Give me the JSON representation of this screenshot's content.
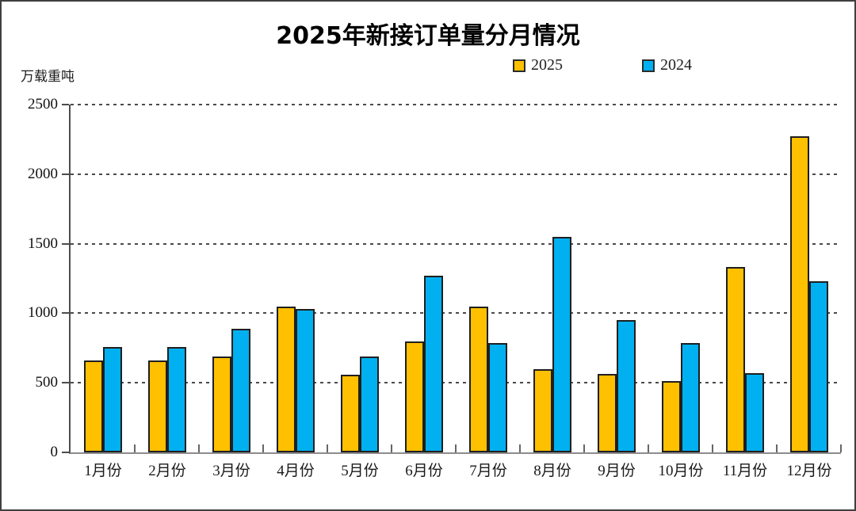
{
  "chart_data": {
    "type": "bar",
    "title": "2025年新接订单量分月情况",
    "ylabel": "万载重吨",
    "xlabel": "",
    "categories": [
      "1月份",
      "2月份",
      "3月份",
      "4月份",
      "5月份",
      "6月份",
      "7月份",
      "8月份",
      "9月份",
      "10月份",
      "11月份",
      "12月份"
    ],
    "series": [
      {
        "name": "2025",
        "color": "#FFC000",
        "values": [
          660,
          660,
          690,
          1050,
          560,
          795,
          1050,
          600,
          565,
          510,
          1330,
          2270
        ]
      },
      {
        "name": "2024",
        "color": "#00B0F0",
        "values": [
          760,
          760,
          890,
          1030,
          690,
          1270,
          785,
          1550,
          950,
          785,
          570,
          1230
        ]
      }
    ],
    "ylim": [
      0,
      2500
    ],
    "ytick_step": 500,
    "yticks": [
      "2500",
      "2000",
      "1500",
      "1000",
      "500",
      "0"
    ],
    "grid": "horizontal-dashed",
    "legend_position": "top-center"
  },
  "colors": {
    "bar_2025": "#FFC000",
    "bar_2024": "#00B0F0",
    "bar_border": "#1f1f1f",
    "axis": "#4d4d4d",
    "baseline": "#8c8c8c",
    "grid": "#4a4a4a",
    "text": "#1a1a1a",
    "frame_border": "#3f3f3f"
  }
}
